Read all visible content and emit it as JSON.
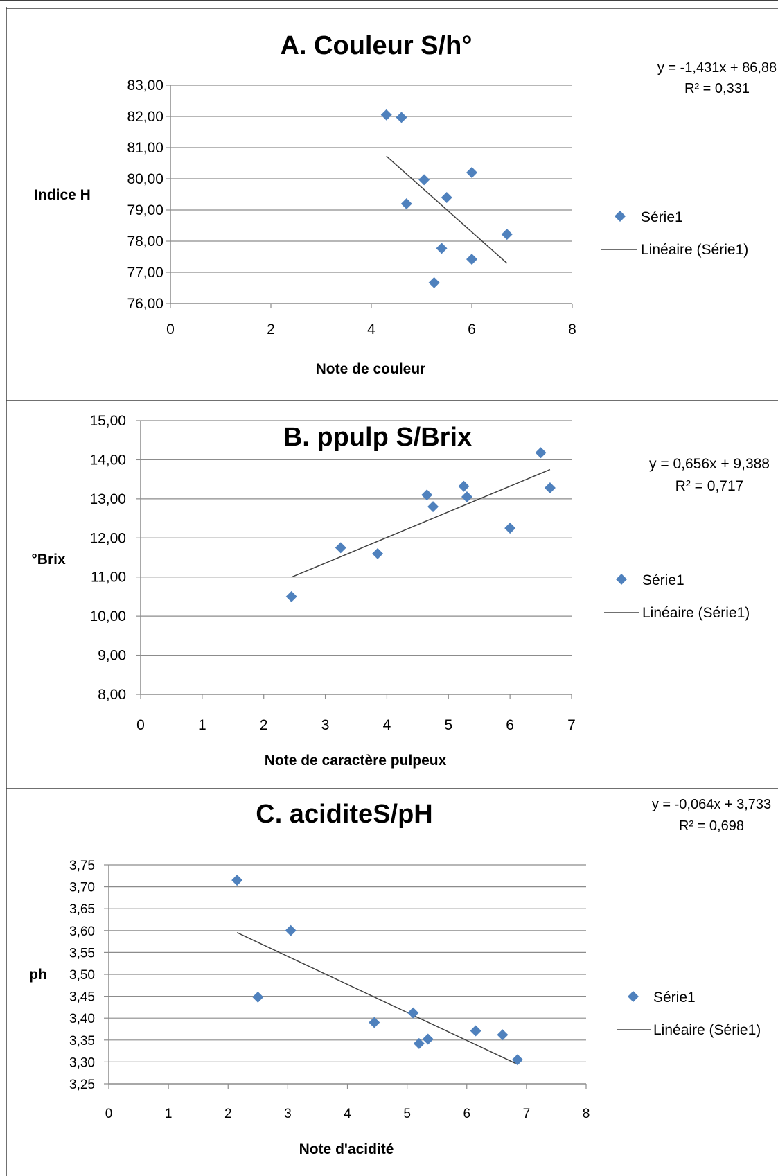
{
  "chart_data": [
    {
      "type": "scatter",
      "title": "A. Couleur S/h°",
      "xlabel": "Note de couleur",
      "ylabel": "Indice H",
      "xlim": [
        0,
        8
      ],
      "ylim": [
        76,
        83
      ],
      "x_ticks": [
        "0",
        "2",
        "4",
        "6",
        "8"
      ],
      "y_ticks": [
        "76,00",
        "77,00",
        "78,00",
        "79,00",
        "80,00",
        "81,00",
        "82,00",
        "83,00"
      ],
      "grid": "horizontal",
      "legend_position": "right",
      "series": [
        {
          "name": "Série1",
          "x": [
            4.3,
            4.6,
            5.05,
            6.0,
            4.7,
            5.5,
            6.7,
            5.4,
            6.0,
            5.25
          ],
          "y": [
            82.05,
            81.97,
            79.97,
            80.2,
            79.2,
            79.4,
            78.22,
            77.77,
            77.42,
            76.67
          ]
        }
      ],
      "trendline": {
        "name": "Linéaire (Série1)",
        "equation": "y = -1,431x + 86,88",
        "r2": "R² = 0,331",
        "x_range": [
          4.3,
          6.7
        ],
        "slope": -1.431,
        "intercept": 86.88
      }
    },
    {
      "type": "scatter",
      "title": "B. ppulp S/Brix",
      "xlabel": "Note de caractère pulpeux",
      "ylabel": "°Brix",
      "xlim": [
        0,
        7
      ],
      "ylim": [
        8,
        15
      ],
      "x_ticks": [
        "0",
        "1",
        "2",
        "3",
        "4",
        "5",
        "6",
        "7"
      ],
      "y_ticks": [
        "8,00",
        "9,00",
        "10,00",
        "11,00",
        "12,00",
        "13,00",
        "14,00",
        "15,00"
      ],
      "grid": "horizontal",
      "legend_position": "right",
      "series": [
        {
          "name": "Série1",
          "x": [
            2.45,
            3.25,
            3.85,
            4.65,
            4.75,
            5.25,
            5.3,
            6.0,
            6.5,
            6.65
          ],
          "y": [
            10.5,
            11.75,
            11.6,
            13.1,
            12.8,
            13.32,
            13.05,
            12.25,
            14.18,
            13.28
          ]
        }
      ],
      "trendline": {
        "name": "Linéaire (Série1)",
        "equation": "y = 0,656x + 9,388",
        "r2": "R² = 0,717",
        "x_range": [
          2.45,
          6.65
        ],
        "slope": 0.656,
        "intercept": 9.388
      }
    },
    {
      "type": "scatter",
      "title": "C. aciditeS/pH",
      "xlabel": "Note d'acidité",
      "ylabel": "ph",
      "xlim": [
        0,
        8
      ],
      "ylim": [
        3.25,
        3.75
      ],
      "x_ticks": [
        "0",
        "1",
        "2",
        "3",
        "4",
        "5",
        "6",
        "7",
        "8"
      ],
      "y_ticks": [
        "3,25",
        "3,30",
        "3,35",
        "3,40",
        "3,45",
        "3,50",
        "3,55",
        "3,60",
        "3,65",
        "3,70",
        "3,75"
      ],
      "grid": "horizontal",
      "legend_position": "right",
      "series": [
        {
          "name": "Série1",
          "x": [
            2.15,
            2.5,
            3.05,
            4.45,
            5.1,
            5.2,
            5.35,
            6.15,
            6.6,
            6.85
          ],
          "y": [
            3.715,
            3.448,
            3.6,
            3.39,
            3.412,
            3.342,
            3.352,
            3.371,
            3.362,
            3.305
          ]
        }
      ],
      "trendline": {
        "name": "Linéaire (Série1)",
        "equation": "y = -0,064x + 3,733",
        "r2": "R² = 0,698",
        "x_range": [
          2.15,
          6.85
        ],
        "slope": -0.064,
        "intercept": 3.733
      }
    }
  ],
  "colors": {
    "marker": "#4f81bd",
    "trendline": "#404040",
    "grid": "#8c8c8c",
    "axis": "#8c8c8c",
    "frame": "#404040",
    "text": "#000000"
  }
}
